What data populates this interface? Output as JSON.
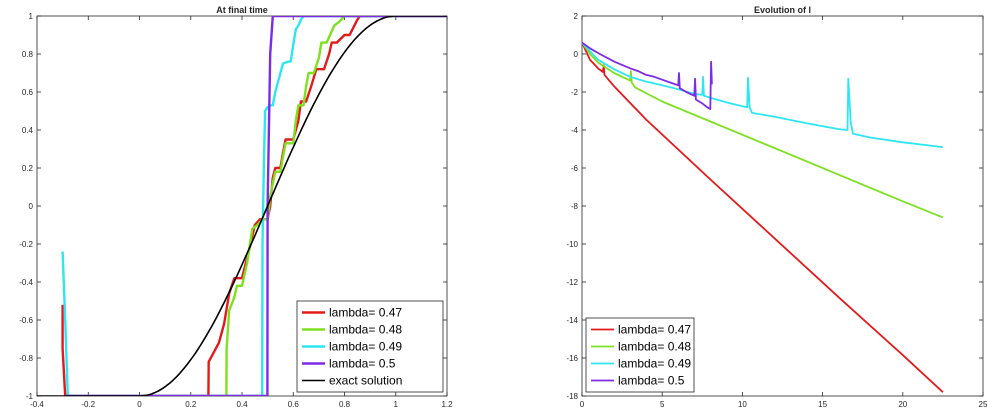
{
  "chart_data": [
    {
      "type": "line",
      "title": "At final time",
      "xlabel": "",
      "ylabel": "",
      "xlim": [
        -0.4,
        1.2
      ],
      "ylim": [
        -1,
        1
      ],
      "xticks": [
        "-0.4",
        "-0.2",
        "0",
        "0.2",
        "0.4",
        "0.6",
        "0.8",
        "1",
        "1.2"
      ],
      "yticks": [
        "-1",
        "-0.8",
        "-0.6",
        "-0.4",
        "-0.2",
        "0",
        "0.2",
        "0.4",
        "0.6",
        "0.8",
        "1"
      ],
      "legend_position": "bottom-right",
      "series": [
        {
          "name": "lambda= 0.47",
          "color": "#e31a1c",
          "width": 2.4,
          "x": [
            -0.3,
            -0.3,
            -0.29,
            0.269,
            0.27,
            0.31,
            0.33,
            0.35,
            0.37,
            0.4,
            0.415,
            0.43,
            0.45,
            0.47,
            0.49,
            0.5,
            0.51,
            0.515,
            0.52,
            0.53,
            0.55,
            0.56,
            0.57,
            0.6,
            0.62,
            0.63,
            0.65,
            0.67,
            0.69,
            0.72,
            0.74,
            0.75,
            0.77,
            0.8,
            0.82,
            0.85,
            0.86,
            1.2
          ],
          "y": [
            -0.52,
            -0.75,
            -1,
            -1,
            -0.82,
            -0.72,
            -0.62,
            -0.46,
            -0.38,
            -0.38,
            -0.3,
            -0.22,
            -0.1,
            -0.07,
            -0.07,
            -0.07,
            0.0,
            0.08,
            0.15,
            0.2,
            0.2,
            0.28,
            0.35,
            0.35,
            0.45,
            0.55,
            0.55,
            0.63,
            0.72,
            0.72,
            0.8,
            0.86,
            0.86,
            0.9,
            0.9,
            0.98,
            1,
            1
          ]
        },
        {
          "name": "lambda= 0.48",
          "color": "#7fe021",
          "width": 2.4,
          "x": [
            -0.29,
            0.339,
            0.34,
            0.35,
            0.37,
            0.38,
            0.4,
            0.42,
            0.44,
            0.46,
            0.48,
            0.5,
            0.51,
            0.52,
            0.53,
            0.55,
            0.56,
            0.57,
            0.6,
            0.61,
            0.62,
            0.64,
            0.65,
            0.66,
            0.68,
            0.7,
            0.71,
            0.73,
            0.75,
            0.76,
            0.78,
            0.8,
            1.2
          ],
          "y": [
            -1,
            -1,
            -0.75,
            -0.55,
            -0.48,
            -0.42,
            -0.42,
            -0.3,
            -0.12,
            -0.1,
            -0.07,
            -0.07,
            0.05,
            0.12,
            0.18,
            0.18,
            0.26,
            0.33,
            0.33,
            0.45,
            0.53,
            0.53,
            0.63,
            0.7,
            0.7,
            0.78,
            0.86,
            0.86,
            0.92,
            0.95,
            0.97,
            1,
            1
          ]
        },
        {
          "name": "lambda= 0.49",
          "color": "#2ee6f2",
          "width": 2.4,
          "x": [
            -0.3,
            -0.29,
            -0.28,
            0.479,
            0.48,
            0.485,
            0.49,
            0.5,
            0.505,
            0.51,
            0.52,
            0.53,
            0.55,
            0.56,
            0.58,
            0.59,
            0.6,
            0.61,
            0.62,
            0.63,
            0.64,
            1.2
          ],
          "y": [
            -0.24,
            -0.6,
            -1,
            -1,
            -0.2,
            0.2,
            0.5,
            0.52,
            0.52,
            0.53,
            0.53,
            0.6,
            0.7,
            0.75,
            0.76,
            0.76,
            0.85,
            0.93,
            0.95,
            0.98,
            1,
            1
          ]
        },
        {
          "name": "lambda= 0.5",
          "color": "#7e2ae6",
          "width": 2.4,
          "x": [
            -0.29,
            0.499,
            0.5,
            0.51,
            0.52,
            1.2
          ],
          "y": [
            -1,
            -1,
            0,
            0.8,
            1,
            1
          ]
        },
        {
          "name": "exact solution",
          "color": "#000000",
          "width": 1.6,
          "fn": "smooth",
          "x": [],
          "y": []
        }
      ]
    },
    {
      "type": "line",
      "title": "Evolution of l",
      "xlabel": "",
      "ylabel": "",
      "xlim": [
        0,
        25
      ],
      "ylim": [
        -18,
        2
      ],
      "xticks": [
        "0",
        "5",
        "10",
        "15",
        "20",
        "25"
      ],
      "yticks": [
        "-18",
        "-16",
        "-14",
        "-12",
        "-10",
        "-8",
        "-6",
        "-4",
        "-2",
        "0",
        "2"
      ],
      "legend_position": "bottom-left",
      "series": [
        {
          "name": "lambda= 0.47",
          "color": "#e31a1c",
          "width": 1.8,
          "x": [
            0,
            0.5,
            1,
            1.3,
            1.35,
            1.4,
            1.5,
            2,
            4,
            8,
            12,
            16,
            20,
            22.5
          ],
          "y": [
            0.6,
            -0.3,
            -0.75,
            -0.95,
            -0.6,
            -1.1,
            -1.2,
            -1.7,
            -3.45,
            -6.6,
            -9.7,
            -12.8,
            -15.85,
            -17.8
          ]
        },
        {
          "name": "lambda= 0.48",
          "color": "#7fe021",
          "width": 1.8,
          "x": [
            0,
            0.5,
            1,
            2,
            3,
            3.05,
            3.1,
            3.3,
            5,
            8,
            12,
            16,
            20,
            22.5
          ],
          "y": [
            0.6,
            0,
            -0.45,
            -1.0,
            -1.4,
            -0.9,
            -1.5,
            -1.75,
            -2.5,
            -3.55,
            -4.95,
            -6.35,
            -7.75,
            -8.6
          ]
        },
        {
          "name": "lambda= 0.49",
          "color": "#2ee6f2",
          "width": 1.8,
          "x": [
            0,
            1,
            2,
            3,
            4,
            5,
            6,
            7,
            7.5,
            7.55,
            7.6,
            8,
            9,
            10,
            10.3,
            10.35,
            10.45,
            10.6,
            12,
            14,
            16,
            16.55,
            16.6,
            16.75,
            16.9,
            18,
            20,
            22.5
          ],
          "y": [
            0.6,
            -0.3,
            -0.8,
            -1.2,
            -1.45,
            -1.65,
            -1.85,
            -2.1,
            -2.15,
            -1.2,
            -2.2,
            -2.3,
            -2.55,
            -2.75,
            -2.8,
            -1.25,
            -2.8,
            -3.1,
            -3.3,
            -3.65,
            -3.95,
            -4.0,
            -1.3,
            -3.6,
            -4.2,
            -4.4,
            -4.65,
            -4.9
          ]
        },
        {
          "name": "lambda= 0.5",
          "color": "#7e2ae6",
          "width": 1.8,
          "x": [
            0,
            0.5,
            1,
            2,
            3,
            3.5,
            4,
            4.5,
            5,
            5.5,
            6,
            6.05,
            6.1,
            6.5,
            7,
            7.05,
            7.1,
            7.5,
            7.8,
            8,
            8.05,
            8.1
          ],
          "y": [
            0.6,
            0.3,
            0.05,
            -0.4,
            -0.75,
            -0.9,
            -1.1,
            -1.2,
            -1.35,
            -1.5,
            -1.65,
            -1.0,
            -1.8,
            -2.0,
            -2.2,
            -1.3,
            -2.4,
            -2.6,
            -2.8,
            -2.9,
            -0.4,
            -1.6
          ]
        }
      ]
    }
  ]
}
